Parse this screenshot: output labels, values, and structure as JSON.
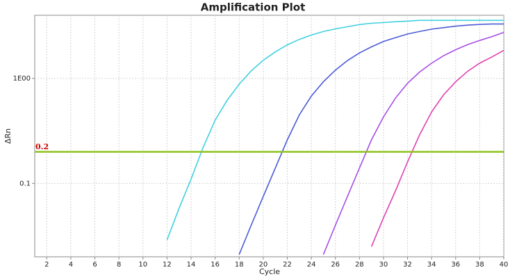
{
  "chart_data": {
    "type": "line",
    "title": "Amplification Plot",
    "x_label": "Cycle",
    "y_label": "ΔRn",
    "log_y": true,
    "grid": true,
    "xlim": [
      1,
      40
    ],
    "xticks": [
      2,
      4,
      6,
      8,
      10,
      12,
      14,
      16,
      18,
      20,
      22,
      24,
      26,
      28,
      30,
      32,
      34,
      36,
      38,
      40
    ],
    "ylim": [
      0.02,
      4
    ],
    "yticks": [
      0.1,
      {
        "value": 1,
        "label": "1E00"
      }
    ],
    "threshold": 0.2,
    "threshold_color": "#8cc21a",
    "x": [
      12,
      13,
      14,
      15,
      16,
      17,
      18,
      19,
      20,
      21,
      22,
      23,
      24,
      25,
      26,
      27,
      28,
      29,
      30,
      31,
      32,
      33,
      34,
      35,
      36,
      37,
      38,
      39,
      40
    ],
    "series": [
      {
        "color": "#3fd0e0",
        "values": [
          0.029,
          0.058,
          0.11,
          0.22,
          0.4,
          0.62,
          0.88,
          1.18,
          1.49,
          1.79,
          2.09,
          2.36,
          2.59,
          2.8,
          2.97,
          3.11,
          3.26,
          3.36,
          3.41,
          3.47,
          3.52,
          3.58,
          3.58,
          3.58,
          3.58,
          3.58,
          3.58,
          3.58,
          3.58
        ]
      },
      {
        "color": "#4a5bd6",
        "values": [
          null,
          null,
          null,
          null,
          null,
          null,
          0.021,
          0.04,
          0.075,
          0.14,
          0.26,
          0.45,
          0.68,
          0.93,
          1.2,
          1.48,
          1.75,
          2.0,
          2.25,
          2.45,
          2.65,
          2.8,
          2.95,
          3.05,
          3.15,
          3.22,
          3.27,
          3.3,
          3.3
        ]
      },
      {
        "color": "#a64de6",
        "values": [
          null,
          null,
          null,
          null,
          null,
          null,
          null,
          null,
          null,
          null,
          null,
          null,
          null,
          0.021,
          0.04,
          0.075,
          0.14,
          0.26,
          0.43,
          0.65,
          0.9,
          1.15,
          1.4,
          1.65,
          1.88,
          2.1,
          2.3,
          2.5,
          2.75
        ]
      },
      {
        "color": "#e040b0",
        "values": [
          null,
          null,
          null,
          null,
          null,
          null,
          null,
          null,
          null,
          null,
          null,
          null,
          null,
          null,
          null,
          null,
          null,
          0.025,
          0.047,
          0.085,
          0.16,
          0.29,
          0.48,
          0.7,
          0.93,
          1.17,
          1.4,
          1.6,
          1.85
        ]
      }
    ]
  }
}
